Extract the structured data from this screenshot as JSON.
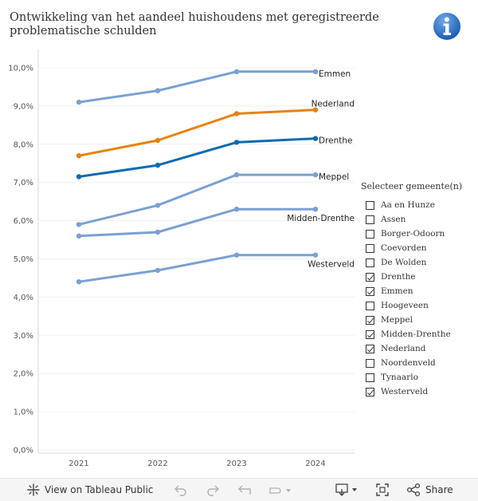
{
  "header": {
    "title": "Ontwikkeling van het aandeel huishoudens met geregistreerde problematische schulden"
  },
  "chart_data": {
    "type": "line",
    "title": "Ontwikkeling van het aandeel huishoudens met geregistreerde problematische schulden",
    "x": [
      "2021",
      "2022",
      "2023",
      "2024"
    ],
    "ylim": [
      0,
      10
    ],
    "yticks": [
      "0,0%",
      "1,0%",
      "2,0%",
      "3,0%",
      "4,0%",
      "5,0%",
      "6,0%",
      "7,0%",
      "8,0%",
      "9,0%",
      "10,0%"
    ],
    "xlabel": "",
    "ylabel": "",
    "series": [
      {
        "name": "Emmen",
        "values": [
          9.1,
          9.4,
          9.9,
          9.9
        ],
        "color": "#7aa0d3"
      },
      {
        "name": "Nederland",
        "values": [
          7.7,
          8.1,
          8.8,
          8.9
        ],
        "color": "#e8820c"
      },
      {
        "name": "Drenthe",
        "values": [
          7.15,
          7.45,
          8.05,
          8.15
        ],
        "color": "#0e6bb0"
      },
      {
        "name": "Meppel",
        "values": [
          5.9,
          6.4,
          7.2,
          7.2
        ],
        "color": "#7aa0d3"
      },
      {
        "name": "Midden-Drenthe",
        "values": [
          5.6,
          5.7,
          6.3,
          6.3
        ],
        "color": "#7aa0d3"
      },
      {
        "name": "Westerveld",
        "values": [
          4.4,
          4.7,
          5.1,
          5.1
        ],
        "color": "#7aa0d3"
      }
    ]
  },
  "filter": {
    "title": "Selecteer gemeente(n)",
    "items": [
      {
        "label": "Aa en Hunze",
        "checked": false
      },
      {
        "label": "Assen",
        "checked": false
      },
      {
        "label": "Borger-Odoorn",
        "checked": false
      },
      {
        "label": "Coevorden",
        "checked": false
      },
      {
        "label": "De Wolden",
        "checked": false
      },
      {
        "label": "Drenthe",
        "checked": true
      },
      {
        "label": "Emmen",
        "checked": true
      },
      {
        "label": "Hoogeveen",
        "checked": false
      },
      {
        "label": "Meppel",
        "checked": true
      },
      {
        "label": "Midden-Drenthe",
        "checked": true
      },
      {
        "label": "Nederland",
        "checked": true
      },
      {
        "label": "Noordenveld",
        "checked": false
      },
      {
        "label": "Tynaarlo",
        "checked": false
      },
      {
        "label": "Westerveld",
        "checked": true
      }
    ]
  },
  "toolbar": {
    "view_label": "View on Tableau Public",
    "share_label": "Share"
  }
}
